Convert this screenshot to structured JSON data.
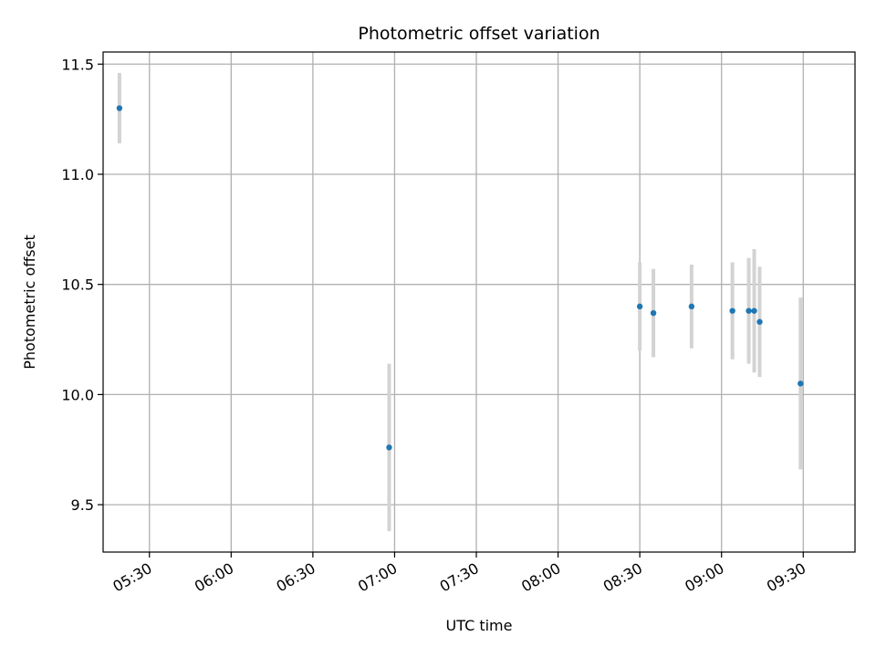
{
  "chart_data": {
    "type": "scatter",
    "title": "Photometric offset variation",
    "xlabel": "UTC time",
    "ylabel": "Photometric offset",
    "xlim": [
      "05:13",
      "09:49"
    ],
    "ylim": [
      9.285,
      11.555
    ],
    "x_ticks": [
      "05:30",
      "06:00",
      "06:30",
      "07:00",
      "07:30",
      "08:00",
      "08:30",
      "09:00",
      "09:30"
    ],
    "y_ticks": [
      9.5,
      10.0,
      10.5,
      11.0,
      11.5
    ],
    "y_tick_labels": [
      "9.5",
      "10.0",
      "10.5",
      "11.0",
      "11.5"
    ],
    "grid": true,
    "marker_color": "#1f77b4",
    "errorbar_color": "#d3d3d3",
    "points": [
      {
        "time": "05:19",
        "value": 11.3,
        "err": 0.16
      },
      {
        "time": "06:58",
        "value": 9.76,
        "err": 0.38
      },
      {
        "time": "08:30",
        "value": 10.4,
        "err": 0.2
      },
      {
        "time": "08:35",
        "value": 10.37,
        "err": 0.2
      },
      {
        "time": "08:49",
        "value": 10.4,
        "err": 0.19
      },
      {
        "time": "09:04",
        "value": 10.38,
        "err": 0.22
      },
      {
        "time": "09:10",
        "value": 10.38,
        "err": 0.24
      },
      {
        "time": "09:12",
        "value": 10.38,
        "err": 0.28
      },
      {
        "time": "09:14",
        "value": 10.33,
        "err": 0.25
      },
      {
        "time": "09:29",
        "value": 10.05,
        "err": 0.39
      }
    ]
  }
}
